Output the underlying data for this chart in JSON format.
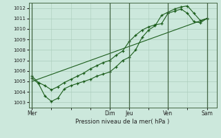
{
  "xlabel": "Pression niveau de la mer( hPa )",
  "background_color": "#cce8dc",
  "grid_color": "#aaccbb",
  "line_color": "#1a5c1a",
  "ylim": [
    1002.5,
    1012.5
  ],
  "yticks": [
    1003,
    1004,
    1005,
    1006,
    1007,
    1008,
    1009,
    1010,
    1011,
    1012
  ],
  "day_labels": [
    "Mer",
    "Dim",
    "Jeu",
    "Ven",
    "Sam"
  ],
  "day_positions": [
    0,
    12,
    15,
    21,
    27
  ],
  "xlim": [
    -0.5,
    28.5
  ],
  "series1_x": [
    0,
    1,
    2,
    3,
    4,
    5,
    6,
    7,
    8,
    9,
    10,
    11,
    12,
    13,
    14,
    15,
    16,
    17,
    18,
    19,
    20,
    21,
    22,
    23,
    24,
    25,
    26,
    27
  ],
  "series1_y": [
    1005.5,
    1004.9,
    1004.6,
    1004.2,
    1004.5,
    1004.9,
    1005.2,
    1005.5,
    1005.8,
    1006.2,
    1006.5,
    1006.8,
    1007.0,
    1007.5,
    1007.9,
    1008.8,
    1009.4,
    1009.9,
    1010.2,
    1010.4,
    1010.5,
    1011.5,
    1011.7,
    1011.9,
    1011.5,
    1010.7,
    1010.6,
    1011.0
  ],
  "series2_x": [
    0,
    1,
    2,
    3,
    4,
    5,
    6,
    7,
    8,
    9,
    10,
    11,
    12,
    13,
    14,
    15,
    16,
    17,
    18,
    19,
    20,
    21,
    22,
    23,
    24,
    25,
    26,
    27
  ],
  "series2_y": [
    1005.3,
    1004.8,
    1003.6,
    1003.1,
    1003.4,
    1004.3,
    1004.6,
    1004.8,
    1005.0,
    1005.2,
    1005.5,
    1005.7,
    1005.9,
    1006.4,
    1007.0,
    1007.3,
    1008.0,
    1009.2,
    1009.9,
    1010.3,
    1011.3,
    1011.6,
    1011.9,
    1012.1,
    1012.2,
    1011.5,
    1010.8,
    1011.0
  ],
  "series3_x": [
    0,
    27
  ],
  "series3_y": [
    1005.0,
    1011.0
  ]
}
